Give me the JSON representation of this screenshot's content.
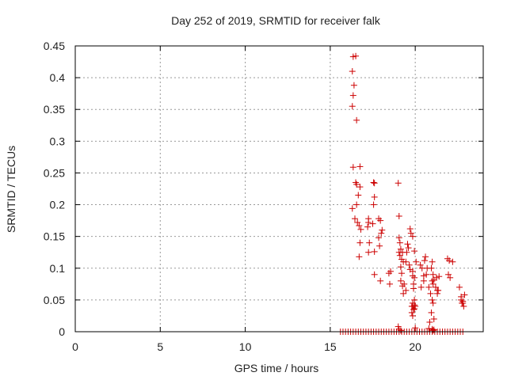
{
  "chart_data": {
    "type": "scatter",
    "title": "Day 252 of 2019, SRMTID for receiver falk",
    "xlabel": "GPS time / hours",
    "ylabel": "SRMTID / TECUs",
    "xlim": [
      0,
      24
    ],
    "ylim": [
      0,
      0.45
    ],
    "x_ticks": [
      0,
      5,
      10,
      15,
      20
    ],
    "x_tick_labels": [
      "0",
      "5",
      "10",
      "15",
      "20"
    ],
    "y_ticks": [
      0,
      0.05,
      0.1,
      0.15,
      0.2,
      0.25,
      0.3,
      0.35,
      0.4,
      0.45
    ],
    "y_tick_labels": [
      "0",
      "0.05",
      "0.1",
      "0.15",
      "0.2",
      "0.25",
      "0.3",
      "0.35",
      "0.4",
      "0.45"
    ],
    "grid": true,
    "marker": "+",
    "colors": {
      "series": "#cc0000",
      "grid": "#999999",
      "axis": "#000000",
      "text": "#222222"
    },
    "series": [
      {
        "name": "SRMTID",
        "x": [
          16.35,
          16.5,
          16.3,
          16.4,
          16.35,
          16.3,
          16.55,
          16.35,
          16.75,
          16.5,
          16.55,
          16.75,
          16.65,
          16.3,
          16.55,
          16.45,
          16.6,
          16.7,
          16.8,
          16.75,
          16.7,
          17.55,
          17.6,
          17.6,
          17.55,
          17.25,
          17.25,
          17.5,
          17.2,
          17.3,
          17.85,
          17.95,
          18.05,
          18.0,
          17.85,
          17.6,
          17.25,
          17.6,
          17.9,
          17.95,
          18.55,
          18.45,
          18.5,
          19.0,
          19.05,
          19.05,
          19.1,
          19.15,
          19.05,
          19.1,
          19.25,
          19.2,
          19.3,
          19.15,
          19.2,
          19.15,
          19.25,
          19.35,
          19.45,
          19.3,
          19.55,
          19.5,
          19.45,
          19.6,
          19.7,
          19.75,
          19.85,
          19.95,
          19.65,
          19.7,
          19.85,
          19.9,
          19.9,
          19.95,
          19.85,
          19.8,
          19.95,
          19.9,
          19.8,
          19.85,
          20.0,
          19.95,
          19.85,
          20.05,
          19.85,
          19.95,
          20.3,
          20.4,
          20.5,
          20.35,
          20.6,
          20.55,
          20.7,
          20.65,
          20.5,
          20.8,
          20.9,
          21.0,
          21.05,
          20.95,
          21.1,
          20.85,
          21.0,
          20.95,
          21.05,
          21.1,
          21.0,
          21.05,
          21.2,
          21.3,
          21.4,
          21.25,
          21.35,
          21.3,
          21.9,
          22.2,
          21.95,
          22.05,
          22.0,
          22.6,
          22.7,
          22.8,
          22.75,
          22.85,
          22.9,
          22.7,
          22.8,
          19.0,
          19.05,
          19.15,
          20.0,
          20.8,
          21.1,
          21.0,
          21.05,
          15.6,
          15.75,
          15.9,
          16.05,
          16.2,
          16.35,
          16.5,
          16.65,
          16.8,
          16.95,
          17.1,
          17.25,
          17.4,
          17.55,
          17.7,
          17.85,
          18.0,
          18.15,
          18.3,
          18.45,
          18.6,
          18.75,
          18.9,
          19.05,
          19.2,
          19.35,
          19.5,
          19.65,
          19.8,
          19.95,
          20.1,
          20.25,
          20.4,
          20.55,
          20.7,
          20.85,
          21.0,
          21.15,
          21.3,
          21.45,
          21.6,
          21.75,
          21.9,
          22.05,
          22.2,
          22.35,
          22.5,
          22.65,
          22.8
        ],
        "y": [
          0.433,
          0.434,
          0.41,
          0.388,
          0.372,
          0.355,
          0.333,
          0.259,
          0.26,
          0.235,
          0.232,
          0.228,
          0.215,
          0.194,
          0.2,
          0.178,
          0.172,
          0.167,
          0.161,
          0.14,
          0.118,
          0.235,
          0.234,
          0.212,
          0.2,
          0.178,
          0.172,
          0.17,
          0.165,
          0.14,
          0.178,
          0.175,
          0.16,
          0.155,
          0.148,
          0.126,
          0.125,
          0.09,
          0.135,
          0.08,
          0.095,
          0.092,
          0.075,
          0.234,
          0.182,
          0.148,
          0.14,
          0.13,
          0.125,
          0.12,
          0.125,
          0.114,
          0.11,
          0.102,
          0.092,
          0.08,
          0.072,
          0.075,
          0.065,
          0.06,
          0.138,
          0.125,
          0.11,
          0.132,
          0.162,
          0.155,
          0.15,
          0.127,
          0.105,
          0.098,
          0.088,
          0.075,
          0.068,
          0.05,
          0.045,
          0.04,
          0.042,
          0.035,
          0.03,
          0.025,
          0.04,
          0.036,
          0.04,
          0.11,
          0.095,
          0.085,
          0.105,
          0.1,
          0.088,
          0.07,
          0.118,
          0.112,
          0.1,
          0.09,
          0.08,
          0.07,
          0.06,
          0.05,
          0.045,
          0.03,
          0.02,
          0.015,
          0.11,
          0.1,
          0.09,
          0.082,
          0.08,
          0.075,
          0.07,
          0.065,
          0.087,
          0.085,
          0.065,
          0.06,
          0.115,
          0.11,
          0.09,
          0.085,
          0.112,
          0.07,
          0.055,
          0.048,
          0.045,
          0.04,
          0.058,
          0.05,
          0.045,
          0.008,
          0.004,
          0.002,
          0.006,
          0.005,
          0.003,
          0.004,
          0.002,
          0,
          0,
          0,
          0,
          0,
          0,
          0,
          0,
          0,
          0,
          0,
          0,
          0,
          0,
          0,
          0,
          0,
          0,
          0,
          0,
          0,
          0,
          0,
          0,
          0,
          0,
          0,
          0,
          0,
          0,
          0,
          0,
          0,
          0,
          0,
          0,
          0,
          0,
          0,
          0,
          0,
          0,
          0,
          0,
          0,
          0,
          0,
          0,
          0
        ]
      }
    ]
  }
}
